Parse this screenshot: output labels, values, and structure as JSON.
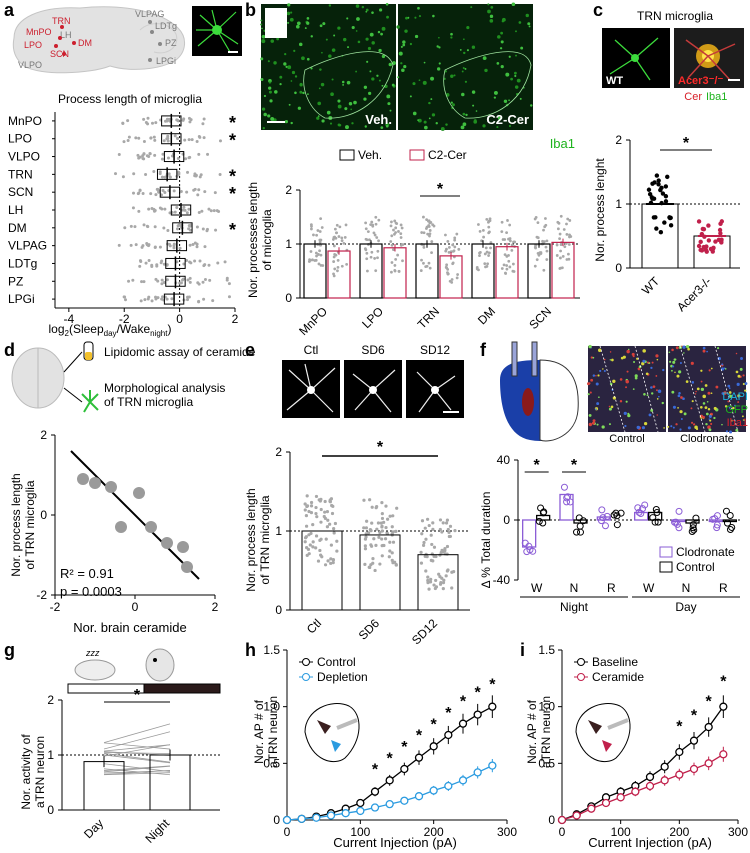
{
  "panels": [
    "a",
    "b",
    "c",
    "d",
    "e",
    "f",
    "g",
    "h",
    "i"
  ],
  "a": {
    "brain_labels_red": [
      "MnPO",
      "TRN",
      "LPO",
      "DM",
      "SCN"
    ],
    "brain_labels_gray": [
      "VLPAG",
      "LDTg",
      "LH",
      "PZ",
      "VLPO",
      "LPGi"
    ],
    "title": "Process length of microglia",
    "xlabel": "log₂(Sleepₐᵧ / Wakeₙᵢᵍʰₜ)",
    "xlabel_main": "log",
    "xlabel_sub": "2",
    "xlabel_paren": "(Sleep",
    "xlabel_day": "day",
    "xlabel_mid": "/Wake",
    "xlabel_night": "night",
    "xlabel_end": ")",
    "xticks": [
      "-4",
      "-2",
      "0",
      "2"
    ]
  },
  "b": {
    "image_labels": [
      "Veh.",
      "C2-Cer"
    ],
    "stain": "Iba1",
    "legend": [
      "Veh.",
      "C2-Cer"
    ],
    "ylabel1": "Nor. processes length",
    "ylabel2": "of microglia",
    "yticks": [
      "0",
      "1",
      "2"
    ],
    "star": "*"
  },
  "c": {
    "title": "TRN microglia",
    "image_labels": [
      "WT",
      "Acer3⁻/⁻"
    ],
    "stain_cer": "Cer",
    "stain_iba": "Iba1",
    "ylabel": "Nor. process lenght",
    "yticks": [
      "0",
      "1",
      "2"
    ],
    "star": "*"
  },
  "d": {
    "assay1": "Lipidomic assay of ceramide",
    "assay2": "Morphological analysis of TRN microglia",
    "ylabel1": "Nor. process length",
    "ylabel2": "of TRN microglia",
    "xlabel": "Nor. brain ceramide",
    "r2": "R² = 0.91",
    "p": "p = 0.0003",
    "ticks": [
      "-2",
      "0",
      "2"
    ]
  },
  "e": {
    "image_labels": [
      "Ctl",
      "SD6",
      "SD12"
    ],
    "ylabel1": "Nor. process length",
    "ylabel2": "of TRN microglia",
    "yticks": [
      "0",
      "1",
      "2"
    ],
    "star": "*"
  },
  "f": {
    "stains": [
      "DAPI",
      "GFP",
      "Iba1"
    ],
    "image_labels": [
      "Control",
      "Clodronate"
    ],
    "ylabel": "Δ % Total duration",
    "yticks": [
      "-40",
      "0",
      "40"
    ],
    "legend": [
      "Clodronate",
      "Control"
    ],
    "xgroups": [
      "Night",
      "Day"
    ],
    "star": "*"
  },
  "g": {
    "ylabel1": "Nor. activity of",
    "ylabel2": "aTRN neuron",
    "yticks": [
      "0",
      "1",
      "2"
    ],
    "zzz": "zzz",
    "star": "*"
  },
  "h": {
    "ylabel1": "Nor. AP # of",
    "ylabel2": "aTRN neuron",
    "xlabel": "Current Injection (pA)",
    "legend": [
      "Control",
      "Depletion"
    ],
    "yticks": [
      "0",
      "0.5",
      "1.0",
      "1.5"
    ],
    "xticks": [
      "0",
      "100",
      "200",
      "300"
    ],
    "star": "*"
  },
  "i": {
    "ylabel1": "Nor. AP # of",
    "ylabel2": "aTRN neuron",
    "xlabel": "Current Injection (pA)",
    "legend": [
      "Baseline",
      "Ceramide"
    ],
    "yticks": [
      "0",
      "0.5",
      "1.0",
      "1.5"
    ],
    "xticks": [
      "0",
      "100",
      "200",
      "300"
    ],
    "star": "*"
  },
  "chart_data": [
    {
      "type": "scatter",
      "panel": "a",
      "title": "Process length of microglia",
      "categories": [
        "MnPO",
        "LPO",
        "VLPO",
        "TRN",
        "SCN",
        "LH",
        "DM",
        "VLPAG",
        "LDTg",
        "PZ",
        "LPGi"
      ],
      "means": [
        -0.3,
        -0.3,
        -0.2,
        -0.45,
        -0.35,
        0.05,
        0.1,
        -0.1,
        -0.15,
        -0.15,
        -0.2
      ],
      "significant": [
        true,
        true,
        false,
        true,
        true,
        false,
        true,
        false,
        false,
        false,
        false
      ],
      "xlim": [
        -4.5,
        2
      ],
      "colors": {
        "highlight": "#cc1f2e",
        "points": "#a8a8a8"
      }
    },
    {
      "type": "bar",
      "panel": "b",
      "categories": [
        "MnPO",
        "LPO",
        "TRN",
        "DM",
        "SCN"
      ],
      "series": [
        {
          "name": "Veh.",
          "values": [
            1.0,
            1.0,
            1.0,
            1.0,
            1.0
          ]
        },
        {
          "name": "C2-Cer",
          "values": [
            0.87,
            0.93,
            0.78,
            0.95,
            1.03
          ]
        }
      ],
      "ylim": [
        0,
        2
      ],
      "colors": {
        "Veh.": "#000000",
        "C2-Cer": "#c0204b"
      }
    },
    {
      "type": "bar",
      "panel": "c",
      "categories": [
        "WT",
        "Acer3-/-"
      ],
      "values": [
        1.0,
        0.5
      ],
      "ylim": [
        0,
        2
      ]
    },
    {
      "type": "scatter",
      "panel": "d",
      "x": [
        -1.3,
        -1.0,
        -0.6,
        -0.35,
        0.1,
        0.4,
        0.8,
        1.2,
        1.3
      ],
      "y": [
        0.9,
        0.8,
        0.7,
        -0.3,
        0.55,
        -0.3,
        -0.7,
        -0.8,
        -1.3
      ],
      "fit": {
        "x": [
          -1.6,
          1.6
        ],
        "y": [
          1.6,
          -1.6
        ]
      },
      "xlim": [
        -2,
        2
      ],
      "ylim": [
        -2,
        2
      ]
    },
    {
      "type": "bar",
      "panel": "e",
      "categories": [
        "Ctl",
        "SD6",
        "SD12"
      ],
      "values": [
        1.0,
        0.95,
        0.7
      ],
      "ylim": [
        0,
        2
      ]
    },
    {
      "type": "bar",
      "panel": "f",
      "categories": [
        "W",
        "N",
        "R",
        "W",
        "N",
        "R"
      ],
      "series": [
        {
          "name": "Clodronate",
          "values": [
            -18,
            17,
            2,
            5,
            -1,
            -1
          ]
        },
        {
          "name": "Control",
          "values": [
            3,
            -2,
            0,
            5,
            -2,
            -1
          ]
        }
      ],
      "ylim": [
        -40,
        40
      ],
      "colors": {
        "Clodronate": "#8a5cd6",
        "Control": "#000000"
      }
    },
    {
      "type": "bar",
      "panel": "g",
      "categories": [
        "Day",
        "Night"
      ],
      "values": [
        0.88,
        1.0
      ],
      "ylim": [
        0,
        2
      ]
    },
    {
      "type": "line",
      "panel": "h",
      "x": [
        0,
        20,
        40,
        60,
        80,
        100,
        120,
        140,
        160,
        180,
        200,
        220,
        240,
        260,
        280
      ],
      "series": [
        {
          "name": "Control",
          "values": [
            0,
            0.01,
            0.03,
            0.06,
            0.1,
            0.15,
            0.25,
            0.35,
            0.45,
            0.55,
            0.65,
            0.75,
            0.85,
            0.93,
            1.0
          ]
        },
        {
          "name": "Depletion",
          "values": [
            0,
            0.01,
            0.02,
            0.04,
            0.06,
            0.08,
            0.11,
            0.14,
            0.17,
            0.21,
            0.26,
            0.3,
            0.35,
            0.42,
            0.48
          ]
        }
      ],
      "xlim": [
        0,
        300
      ],
      "ylim": [
        0,
        1.5
      ],
      "colors": {
        "Control": "#000000",
        "Depletion": "#2b9be0"
      }
    },
    {
      "type": "line",
      "panel": "i",
      "x": [
        0,
        25,
        50,
        75,
        100,
        125,
        150,
        175,
        200,
        225,
        250,
        275
      ],
      "series": [
        {
          "name": "Baseline",
          "values": [
            0,
            0.05,
            0.12,
            0.2,
            0.25,
            0.3,
            0.38,
            0.47,
            0.6,
            0.7,
            0.82,
            1.0
          ]
        },
        {
          "name": "Ceramide",
          "values": [
            0,
            0.04,
            0.1,
            0.15,
            0.2,
            0.25,
            0.3,
            0.35,
            0.4,
            0.45,
            0.5,
            0.58
          ]
        }
      ],
      "xlim": [
        0,
        300
      ],
      "ylim": [
        0,
        1.5
      ],
      "colors": {
        "Baseline": "#000000",
        "Ceramide": "#c0204b"
      }
    }
  ]
}
